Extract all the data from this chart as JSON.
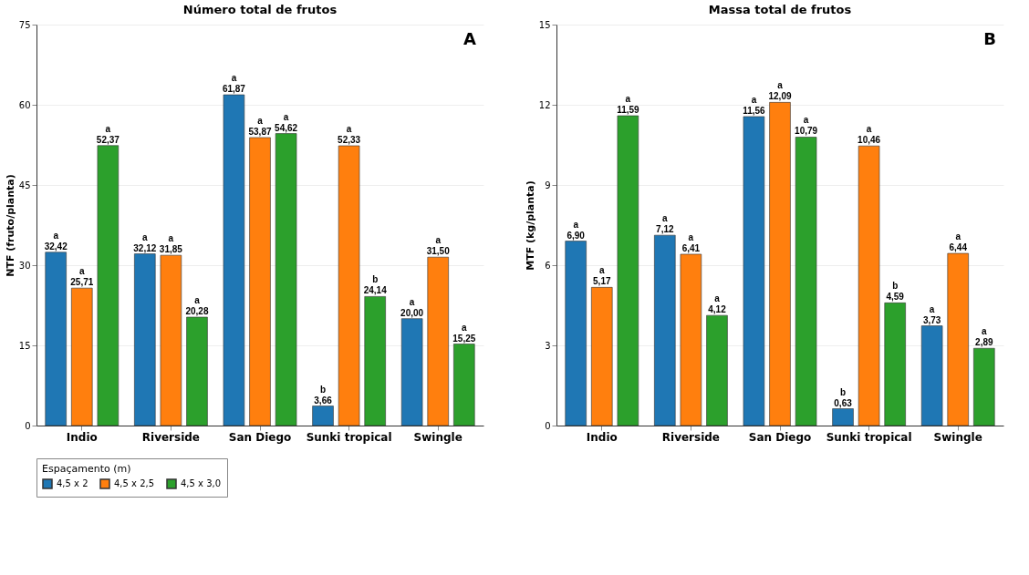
{
  "chart_data": [
    {
      "type": "bar",
      "title": "Número total de frutos",
      "ylabel": "NTF (fruto/planta)",
      "categories": [
        "Indio",
        "Riverside",
        "San Diego",
        "Sunki tropical",
        "Swingle"
      ],
      "series": [
        {
          "name": "4,5 x 2",
          "color": "#1f77b4",
          "values": [
            32.42,
            32.12,
            61.87,
            3.66,
            20.0
          ],
          "value_labels": [
            "a\n32,42",
            "a\n32,12",
            "a\n61,87",
            "b\n3,66",
            "a\n20,00"
          ]
        },
        {
          "name": "4,5 x 2,5",
          "color": "#ff7f0e",
          "values": [
            25.71,
            31.85,
            53.87,
            52.33,
            31.5
          ],
          "value_labels": [
            "a\n25,71",
            "a\n31,85",
            "a\n53,87",
            "a\n52,33",
            "a\n31,50"
          ]
        },
        {
          "name": "4,5 x 3,0",
          "color": "#2ca02c",
          "values": [
            52.37,
            20.28,
            54.62,
            24.14,
            15.25
          ],
          "value_labels": [
            "a\n52,37",
            "a\n20,28",
            "a\n54,62",
            "b\n24,14",
            "a\n15,25"
          ]
        }
      ],
      "ylim": [
        0,
        75
      ],
      "yticks": [
        0,
        15,
        30,
        45,
        60,
        75
      ],
      "grid": "y",
      "legend": "bottom",
      "legend_title": "Espaçamento (m)",
      "annotations": [
        "A"
      ]
    },
    {
      "type": "bar",
      "title": "Massa total de frutos",
      "ylabel": "MTF (kg/planta)",
      "categories": [
        "Indio",
        "Riverside",
        "San Diego",
        "Sunki tropical",
        "Swingle"
      ],
      "series": [
        {
          "name": "4,5 x 2",
          "color": "#1f77b4",
          "values": [
            6.9,
            7.12,
            11.56,
            0.63,
            3.73
          ],
          "value_labels": [
            "a\n6,90",
            "a\n7,12",
            "a\n11,56",
            "b\n0,63",
            "a\n3,73"
          ]
        },
        {
          "name": "4,5 x 2,5",
          "color": "#ff7f0e",
          "values": [
            5.17,
            6.41,
            12.09,
            10.46,
            6.44
          ],
          "value_labels": [
            "a\n5,17",
            "a\n6,41",
            "a\n12,09",
            "a\n10,46",
            "a\n6,44"
          ]
        },
        {
          "name": "4,5 x 3,0",
          "color": "#2ca02c",
          "values": [
            11.59,
            4.12,
            10.79,
            4.59,
            2.89
          ],
          "value_labels": [
            "a\n11,59",
            "a\n4,12",
            "a\n10,79",
            "b\n4,59",
            "a\n2,89"
          ]
        }
      ],
      "ylim": [
        0,
        15
      ],
      "yticks": [
        0,
        3,
        6,
        9,
        12,
        15
      ],
      "grid": "y",
      "annotations": [
        "B"
      ]
    }
  ]
}
